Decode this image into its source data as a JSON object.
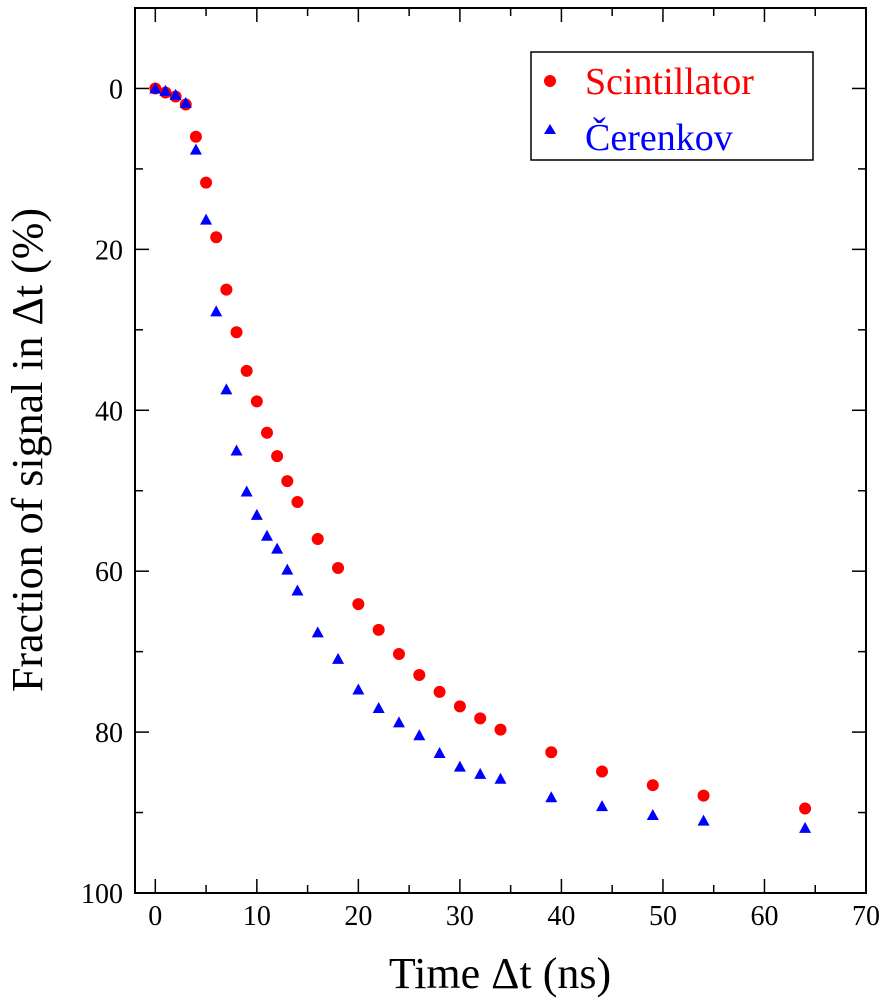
{
  "chart_data": {
    "type": "scatter",
    "xlabel": "Time Δt (ns)",
    "ylabel": "Fraction of signal in Δt  (%)",
    "xlim": [
      -2,
      70
    ],
    "ylim": [
      100,
      -10
    ],
    "y_axis_inverted": true,
    "x_ticks": [
      0,
      10,
      20,
      30,
      40,
      50,
      60,
      70
    ],
    "y_ticks": [
      0,
      20,
      40,
      60,
      80,
      100
    ],
    "grid": false,
    "legend_position": "top-right",
    "series": [
      {
        "name": "Scintillator",
        "color": "#ff0000",
        "marker": "circle",
        "x": [
          0,
          1,
          2,
          3,
          4,
          5,
          6,
          7,
          8,
          9,
          10,
          11,
          12,
          13,
          14,
          16,
          18,
          20,
          22,
          24,
          26,
          28,
          30,
          32,
          34,
          39,
          44,
          49,
          54,
          64
        ],
        "y": [
          0,
          0.5,
          1,
          2,
          6,
          11.7,
          18.5,
          25,
          30.3,
          35.1,
          38.9,
          42.8,
          45.7,
          48.8,
          51.4,
          56,
          59.6,
          64.1,
          67.3,
          70.3,
          72.9,
          75,
          76.8,
          78.3,
          79.7,
          82.5,
          84.9,
          86.6,
          87.9,
          89.5
        ]
      },
      {
        "name": "Čerenkov",
        "color": "#0000ff",
        "marker": "triangle",
        "x": [
          0,
          1,
          2,
          3,
          4,
          5,
          6,
          7,
          8,
          9,
          10,
          11,
          12,
          13,
          14,
          16,
          18,
          20,
          22,
          24,
          26,
          28,
          30,
          32,
          34,
          39,
          44,
          49,
          54,
          64
        ],
        "y": [
          0,
          0.3,
          0.8,
          1.8,
          7.6,
          16.3,
          27.7,
          37.4,
          45,
          50.1,
          53,
          55.6,
          57.2,
          59.8,
          62.4,
          67.6,
          70.9,
          74.7,
          77,
          78.8,
          80.4,
          82.6,
          84.3,
          85.2,
          85.8,
          88.1,
          89.2,
          90.3,
          91,
          91.9
        ]
      }
    ]
  }
}
